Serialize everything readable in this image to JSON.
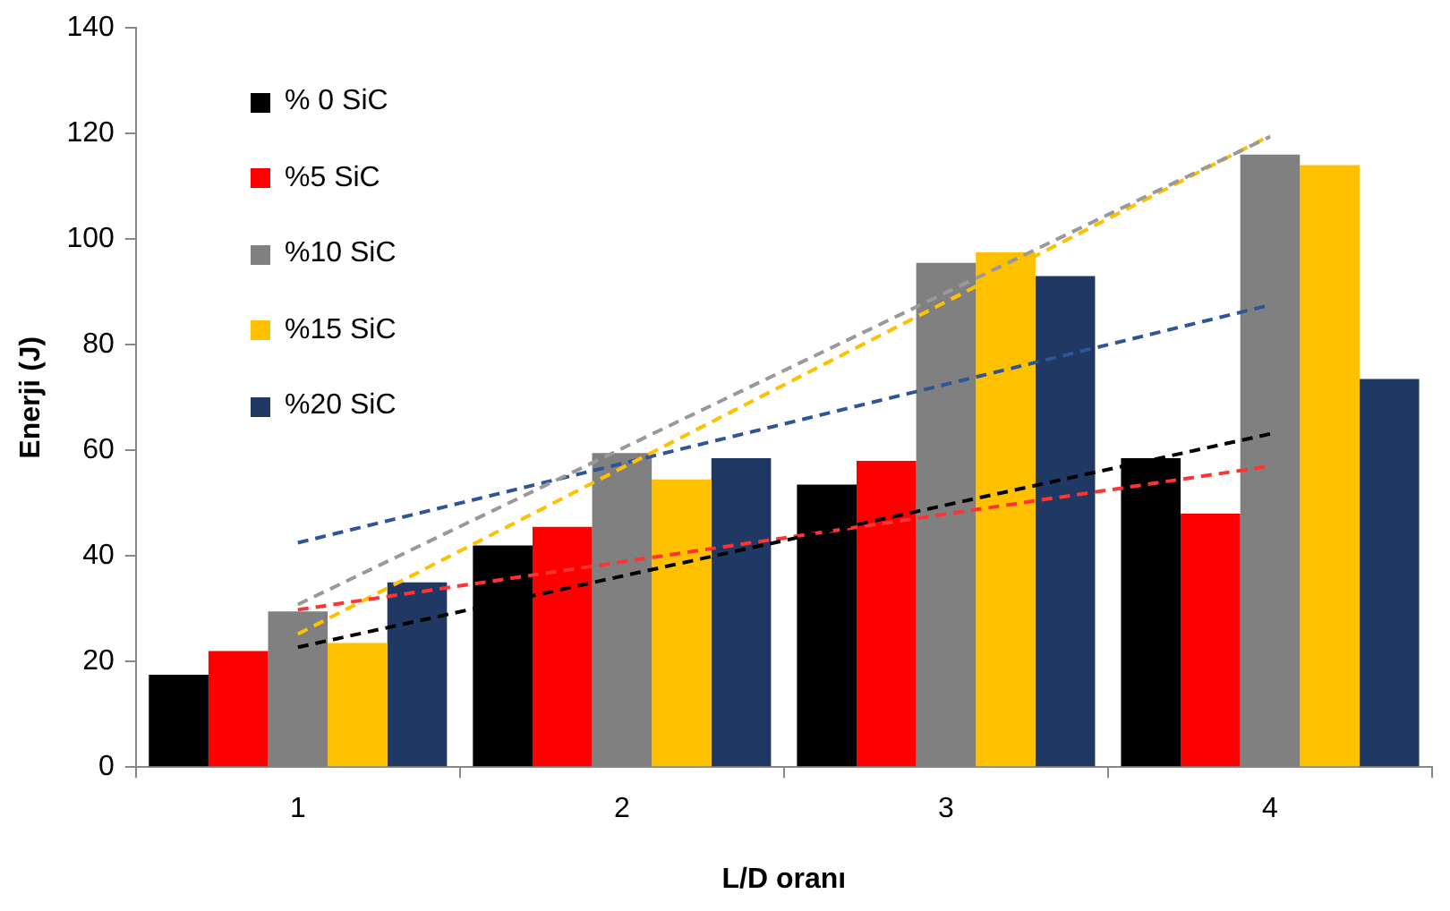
{
  "chart_data": {
    "type": "bar",
    "xlabel": "L/D oranı",
    "ylabel": "Enerji (J)",
    "categories": [
      "1",
      "2",
      "3",
      "4"
    ],
    "series": [
      {
        "name": "% 0 SiC",
        "color": "#000000",
        "values": [
          17.5,
          42,
          53.5,
          58.5
        ]
      },
      {
        "name": "%5 SiC",
        "color": "#ff0000",
        "values": [
          22,
          45.5,
          58,
          48
        ]
      },
      {
        "name": "%10 SiC",
        "color": "#808080",
        "values": [
          29.5,
          59.5,
          95.5,
          116
        ]
      },
      {
        "name": "%15 SiC",
        "color": "#ffc000",
        "values": [
          23.5,
          54.5,
          97.5,
          114
        ]
      },
      {
        "name": "%20 SiC",
        "color": "#1f3864",
        "values": [
          35,
          58.5,
          93,
          73.5
        ]
      },
      {
        "type": "line",
        "color": "#000000",
        "line_style": "dashed",
        "marker": "none",
        "x": [
          "1",
          "4"
        ],
        "values": [
          22.7,
          63.1
        ]
      },
      {
        "type": "line",
        "color": "#ff3333",
        "line_style": "dashed",
        "marker": "none",
        "x": [
          "1",
          "4"
        ],
        "values": [
          29.8,
          57
        ]
      },
      {
        "type": "line",
        "color": "#999999",
        "line_style": "dashed",
        "marker": "none",
        "x": [
          "1",
          "4"
        ],
        "values": [
          30.8,
          119.4
        ]
      },
      {
        "type": "line",
        "color": "#ffc000",
        "line_style": "dashed",
        "marker": "none",
        "x": [
          "1",
          "4"
        ],
        "values": [
          25.2,
          119.6
        ]
      },
      {
        "type": "line",
        "color": "#2f5597",
        "line_style": "dashed",
        "marker": "none",
        "x": [
          "1",
          "4"
        ],
        "values": [
          42.5,
          87.5
        ]
      }
    ],
    "ylim": [
      0,
      140
    ],
    "yticks": [
      0,
      20,
      40,
      60,
      80,
      100,
      120,
      140
    ],
    "grid": false,
    "legend": "top left"
  }
}
